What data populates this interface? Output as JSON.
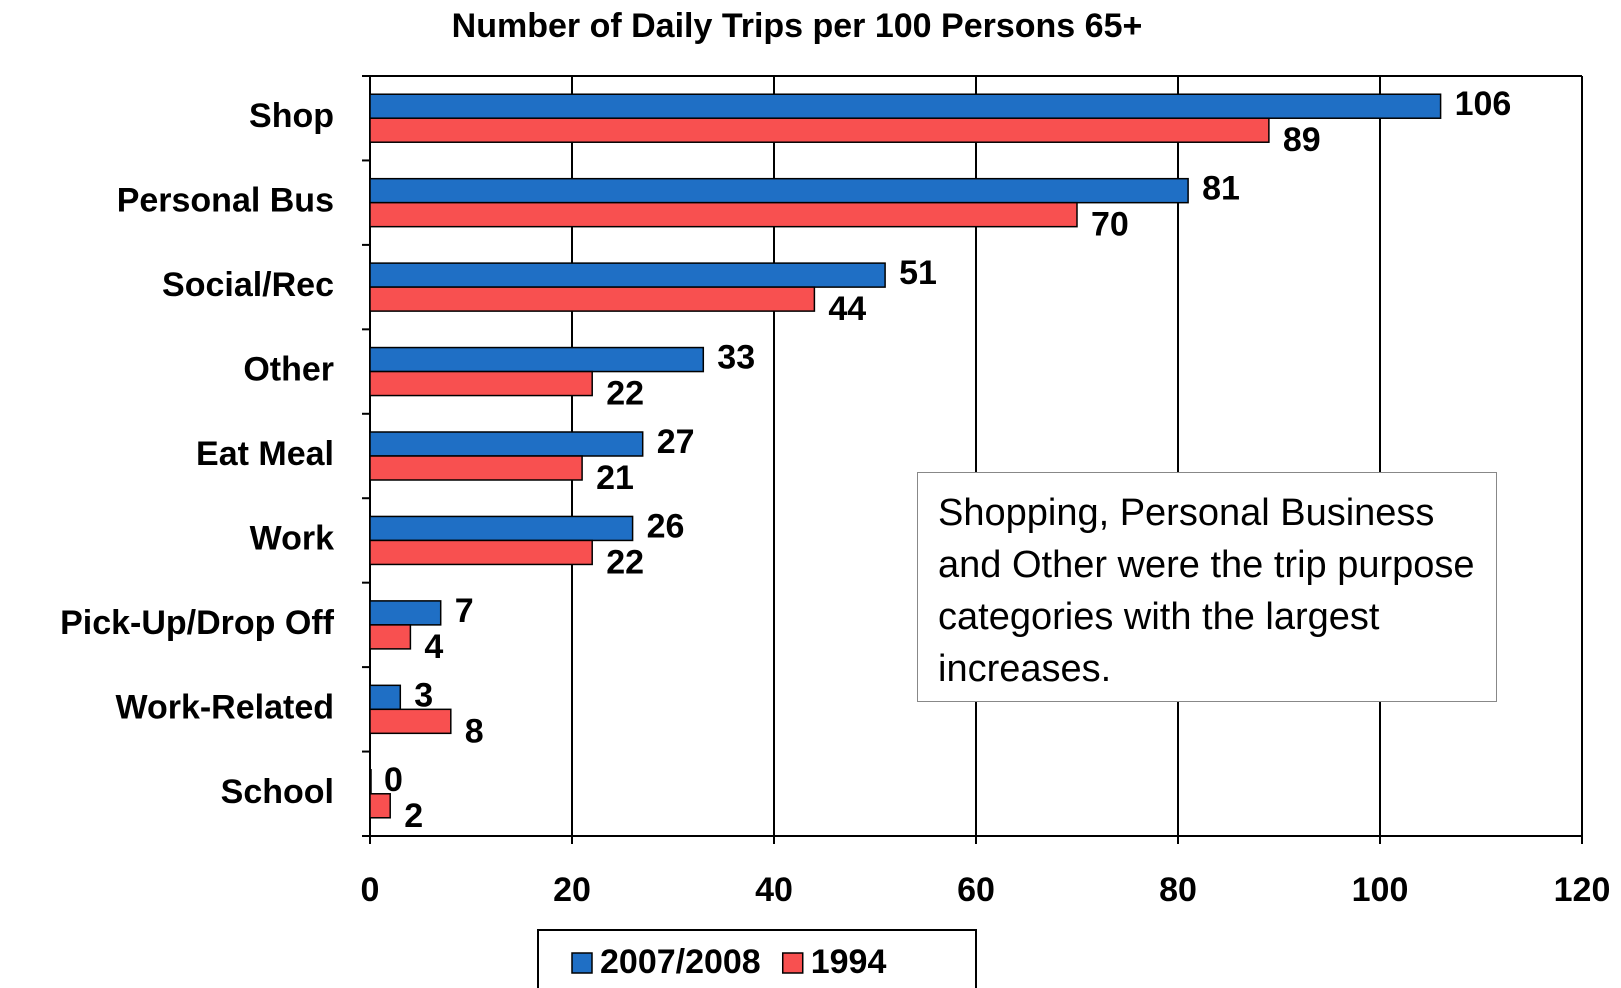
{
  "chart_data": {
    "type": "bar",
    "orientation": "horizontal",
    "title": "Number of Daily Trips per 100 Persons 65+",
    "categories": [
      "Shop",
      "Personal Bus",
      "Social/Rec",
      "Other",
      "Eat Meal",
      "Work",
      "Pick-Up/Drop Off",
      "Work-Related",
      "School"
    ],
    "series": [
      {
        "name": "2007/2008",
        "color": "#1f6fc5",
        "values": [
          106,
          81,
          51,
          33,
          27,
          26,
          7,
          3,
          0
        ]
      },
      {
        "name": "1994",
        "color": "#f85050",
        "values": [
          89,
          70,
          44,
          22,
          21,
          22,
          4,
          8,
          2
        ]
      }
    ],
    "xlim": [
      0,
      120
    ],
    "xticks": [
      0,
      20,
      40,
      60,
      80,
      100,
      120
    ],
    "grid": true,
    "legend": "bottom",
    "annotation": "Shopping, Personal Business and Other were the trip purpose categories with the largest increases."
  }
}
